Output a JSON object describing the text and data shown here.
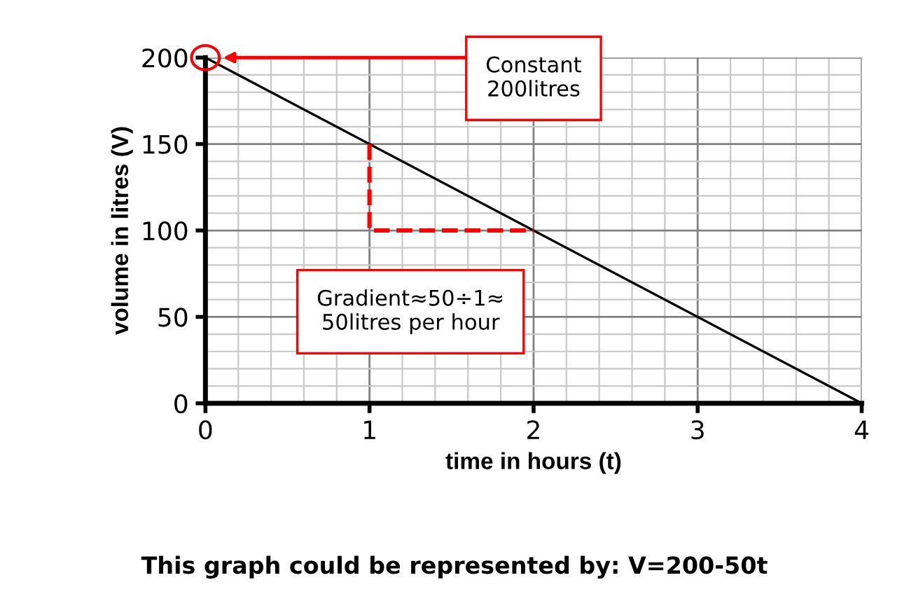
{
  "chart_data": {
    "type": "line",
    "xlabel": "time in hours (t)",
    "ylabel": "volume in litres (V)",
    "series": [
      {
        "color": "#000000",
        "x": [
          0,
          4
        ],
        "values": [
          200,
          0
        ],
        "line_style": "solid"
      },
      {
        "color": "#ff0000",
        "x": [
          1,
          1,
          2
        ],
        "values": [
          150,
          100,
          100
        ],
        "line_style": "dashed"
      }
    ],
    "xlim": [
      0,
      4
    ],
    "ylim": [
      0,
      200
    ],
    "xticks": [
      0,
      1,
      2,
      3,
      4
    ],
    "yticks": [
      0,
      50,
      100,
      150,
      200
    ],
    "grid": true,
    "annotations": [
      "Constant\n200litres",
      "Gradient≈50÷1≈\n50litres per hour",
      "This graph could be represented by: V=200-50t"
    ]
  }
}
